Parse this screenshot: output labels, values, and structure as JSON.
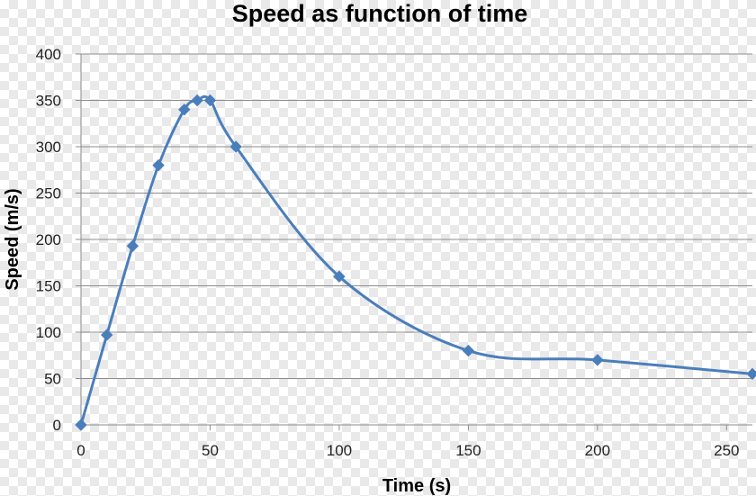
{
  "chart_data": {
    "type": "line",
    "title": "Speed as function of time",
    "xlabel": "Time (s)",
    "ylabel": "Speed (m/s)",
    "xlim": [
      0,
      260
    ],
    "ylim": [
      0,
      400
    ],
    "xticks": [
      0,
      50,
      100,
      150,
      200,
      250
    ],
    "yticks": [
      0,
      50,
      100,
      150,
      200,
      250,
      300,
      350,
      400
    ],
    "grid": true,
    "marker": "diamond",
    "smooth": true,
    "series": [
      {
        "color": "#4a7ebb",
        "points": [
          {
            "x": 0,
            "y": 0
          },
          {
            "x": 10,
            "y": 97
          },
          {
            "x": 20,
            "y": 193
          },
          {
            "x": 30,
            "y": 280
          },
          {
            "x": 40,
            "y": 340
          },
          {
            "x": 45,
            "y": 350
          },
          {
            "x": 50,
            "y": 350
          },
          {
            "x": 60,
            "y": 300
          },
          {
            "x": 100,
            "y": 160
          },
          {
            "x": 150,
            "y": 80
          },
          {
            "x": 200,
            "y": 70
          },
          {
            "x": 260,
            "y": 55
          }
        ]
      }
    ]
  }
}
